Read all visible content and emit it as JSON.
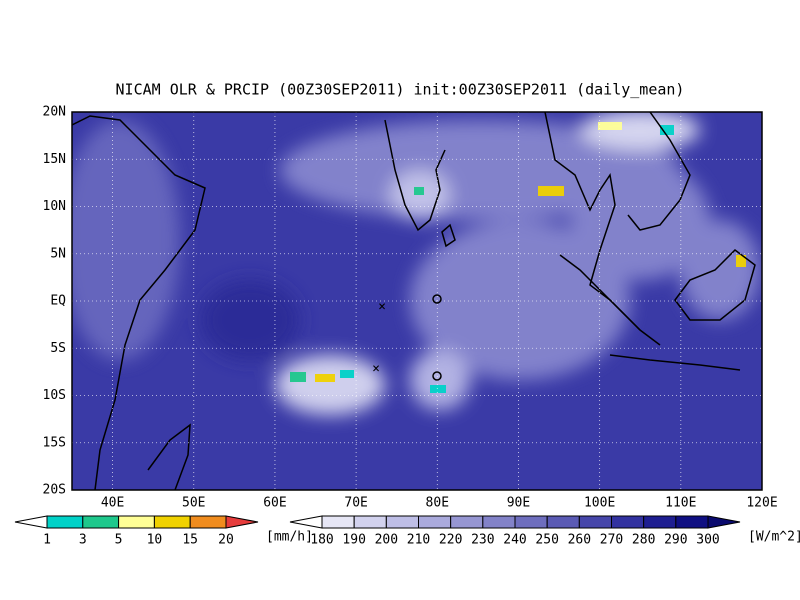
{
  "title": "NICAM OLR & PRCIP (00Z30SEP2011) init:00Z30SEP2011 (daily_mean)",
  "map": {
    "lat_labels": [
      "20N",
      "15N",
      "10N",
      "5N",
      "EQ",
      "5S",
      "10S",
      "15S",
      "20S"
    ],
    "lon_labels": [
      "40E",
      "50E",
      "60E",
      "70E",
      "80E",
      "90E",
      "100E",
      "110E",
      "120E"
    ]
  },
  "precip_bar": {
    "labels": [
      "1",
      "3",
      "5",
      "10",
      "15",
      "20"
    ],
    "unit": "[mm/h]",
    "colors": [
      "#ffffff",
      "#00d2c8",
      "#1ec88c",
      "#ffff96",
      "#f0d200",
      "#f08c1e",
      "#e63c3c"
    ]
  },
  "olr_bar": {
    "labels": [
      "180",
      "190",
      "200",
      "210",
      "220",
      "230",
      "240",
      "250",
      "260",
      "270",
      "280",
      "290",
      "300"
    ],
    "unit": "[W/m^2]",
    "colors": [
      "#ffffff",
      "#e6e6f5",
      "#d2d2ee",
      "#bebee6",
      "#aaaadc",
      "#9696d2",
      "#8282c8",
      "#6e6ebe",
      "#5a5ab4",
      "#4646aa",
      "#3232a0",
      "#1e1e91",
      "#0f0f82",
      "#0a0a6e"
    ]
  }
}
